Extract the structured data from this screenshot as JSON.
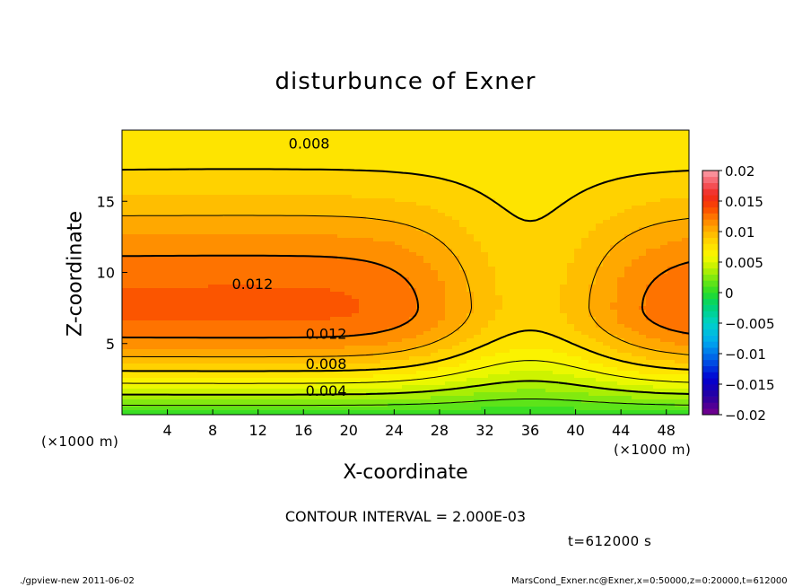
{
  "title": "disturbunce of Exner",
  "x_unit_left": "(×1000 m)",
  "x_unit_right": "(×1000 m)",
  "contour_interval": "CONTOUR INTERVAL = 2.000E-03",
  "time_label": "t=612000 s",
  "footer_left": "./gpview-new   2011-06-02",
  "footer_right": "MarsCond_Exner.nc@Exner,x=0:50000,z=0:20000,t=612000",
  "chart_data": {
    "type": "heatmap",
    "title": "disturbunce of Exner",
    "xlabel": "X-coordinate",
    "ylabel": "Z-coordinate",
    "xlim": [
      0,
      50
    ],
    "ylim": [
      0,
      20
    ],
    "xticks": [
      4,
      8,
      12,
      16,
      20,
      24,
      28,
      32,
      36,
      40,
      44,
      48
    ],
    "yticks": [
      5,
      10,
      15
    ],
    "colorbar": {
      "ticks": [
        0.02,
        0.015,
        0.01,
        0.005,
        0,
        -0.005,
        -0.01,
        -0.015,
        -0.02
      ],
      "labels": [
        "0.02",
        "0.015",
        "0.01",
        "0.005",
        "0",
        "−0.005",
        "−0.01",
        "−0.015",
        "−0.02"
      ],
      "range": [
        -0.02,
        0.02
      ]
    },
    "contour_labels": [
      {
        "text": "0.008",
        "x": 16.5,
        "z": 19.1
      },
      {
        "text": "0.012",
        "x": 11.5,
        "z": 9.2
      },
      {
        "text": "0.012",
        "x": 18.0,
        "z": 5.7
      },
      {
        "text": "0.008",
        "x": 18.0,
        "z": 3.6
      },
      {
        "text": "0.004",
        "x": 18.0,
        "z": 1.7
      }
    ],
    "contour_interval": 0.002,
    "approx_peak_value": 0.014
  }
}
